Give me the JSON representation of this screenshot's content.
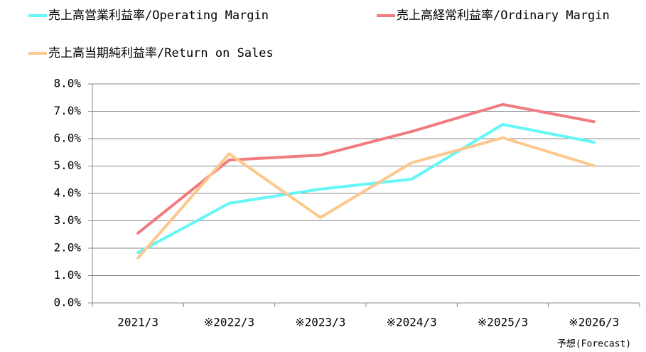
{
  "chart_data": {
    "type": "line",
    "categories": [
      "2021/3",
      "※2022/3",
      "※2023/3",
      "※2024/3",
      "※2025/3",
      "※2026/3"
    ],
    "annotation": "予想(Forecast)",
    "series": [
      {
        "name": "売上高営業利益率/Operating Margin",
        "color": "#66f6f6",
        "values": [
          1.84,
          3.64,
          4.16,
          4.52,
          6.52,
          5.87
        ]
      },
      {
        "name": "売上高経常利益率/Ordinary Margin",
        "color": "#f07b80",
        "values": [
          2.55,
          5.22,
          5.4,
          6.26,
          7.25,
          6.62
        ]
      },
      {
        "name": "売上高当期純利益率/Return on Sales",
        "color": "#fcc88e",
        "values": [
          1.64,
          5.45,
          3.12,
          5.12,
          6.03,
          5.01
        ]
      }
    ],
    "ylim": [
      0,
      8
    ],
    "yticks": [
      {
        "value": 0,
        "label": "0.0%"
      },
      {
        "value": 1,
        "label": "1.0%"
      },
      {
        "value": 2,
        "label": "2.0%"
      },
      {
        "value": 3,
        "label": "3.0%"
      },
      {
        "value": 4,
        "label": "4.0%"
      },
      {
        "value": 5,
        "label": "5.0%"
      },
      {
        "value": 6,
        "label": "6.0%"
      },
      {
        "value": 7,
        "label": "7.0%"
      },
      {
        "value": 8,
        "label": "8.0%"
      }
    ],
    "grid": true
  }
}
